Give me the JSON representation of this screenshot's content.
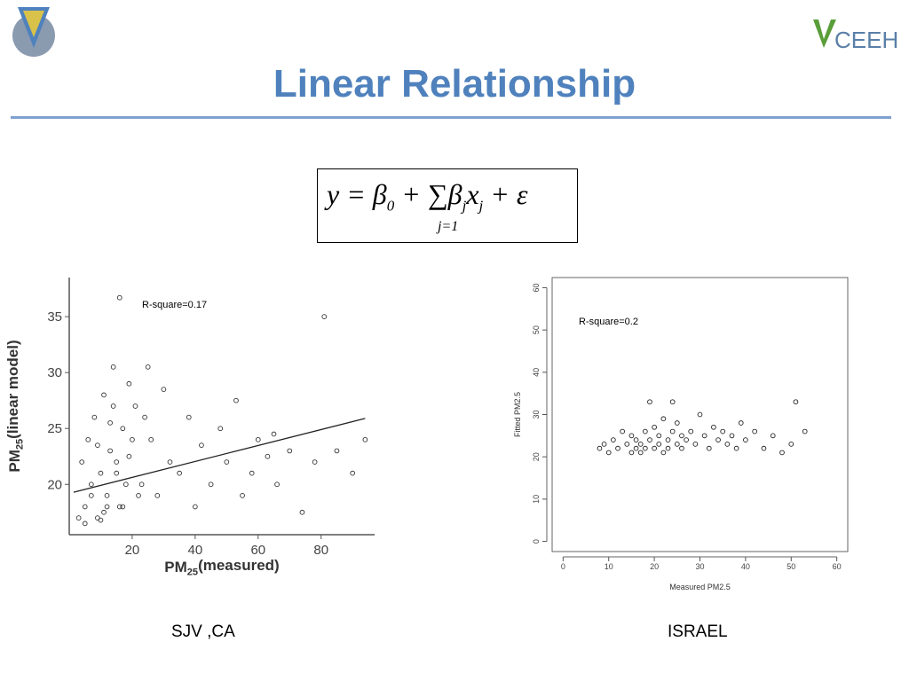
{
  "title": "Linear Relationship",
  "logo_text": "CEEH",
  "formula": {
    "terms": [
      {
        "text": "y = β",
        "sub": "0"
      },
      {
        "text": " + ∑"
      },
      {
        "text": "β",
        "sub": "j"
      },
      {
        "text": "x",
        "sub": "j"
      },
      {
        "text": " + ε"
      }
    ],
    "sum_index": "j=1"
  },
  "captions": [
    "SJV ,CA",
    "ISRAEL"
  ],
  "chart_data": [
    {
      "type": "scatter",
      "annotation": "R-square=0.17",
      "xlabel": [
        "PM",
        "25",
        "(measured)"
      ],
      "ylabel": [
        "PM",
        "25",
        "(linear model)"
      ],
      "box": false,
      "color": "#333333",
      "xlim": [
        0,
        97
      ],
      "ylim": [
        15.5,
        38.5
      ],
      "xticks": [
        20,
        40,
        60,
        80
      ],
      "yticks": [
        20,
        25,
        30,
        35
      ],
      "fit_line": {
        "x": [
          1.4,
          94
        ],
        "y": [
          19.3,
          25.9
        ]
      },
      "x": [
        3,
        4,
        5,
        6,
        7,
        8,
        9,
        10,
        11,
        12,
        13,
        14,
        15,
        16,
        17,
        18,
        19,
        20,
        22,
        24,
        5,
        7,
        9,
        11,
        13,
        15,
        17,
        19,
        21,
        23,
        26,
        28,
        30,
        32,
        35,
        38,
        40,
        42,
        45,
        48,
        50,
        53,
        55,
        58,
        60,
        63,
        66,
        70,
        74,
        78,
        81,
        85,
        90,
        94,
        14,
        16,
        12,
        10,
        25,
        65
      ],
      "y": [
        17,
        22,
        18,
        24,
        20,
        26,
        17,
        21,
        28,
        19,
        23,
        27,
        22,
        18,
        25,
        20,
        29,
        24,
        19,
        26,
        16.5,
        19,
        23.5,
        17.5,
        25.5,
        21,
        18,
        22.5,
        27,
        20,
        24,
        19,
        28.5,
        22,
        21,
        26,
        18,
        23.5,
        20,
        25,
        22,
        27.5,
        19,
        21,
        24,
        22.5,
        20,
        23,
        17.5,
        22,
        35,
        23,
        21,
        24,
        30.5,
        36.7,
        18,
        16.8,
        30.5,
        24.5
      ]
    },
    {
      "type": "scatter",
      "annotation": "R-square=0.2",
      "xlabel": [
        "Measured PM2.5"
      ],
      "ylabel": [
        "Fitted PM2.5"
      ],
      "box": true,
      "color": "#222222",
      "xlim": [
        -2.4,
        62.4
      ],
      "ylim": [
        -2.4,
        62.4
      ],
      "xticks": [
        0,
        10,
        20,
        30,
        40,
        50,
        60
      ],
      "yticks": [
        0,
        10,
        20,
        30,
        40,
        50,
        60
      ],
      "x": [
        8,
        9,
        10,
        11,
        12,
        13,
        14,
        15,
        15,
        16,
        16,
        17,
        17,
        18,
        18,
        19,
        19,
        20,
        20,
        21,
        21,
        22,
        22,
        23,
        23,
        24,
        24,
        25,
        25,
        26,
        26,
        27,
        28,
        29,
        30,
        31,
        32,
        33,
        34,
        35,
        36,
        37,
        38,
        39,
        40,
        42,
        44,
        46,
        48,
        50,
        51,
        53
      ],
      "y": [
        22,
        23,
        21,
        24,
        22,
        26,
        23,
        21,
        25,
        22,
        24,
        23,
        21,
        26,
        22,
        24,
        33,
        22,
        27,
        23,
        25,
        21,
        29,
        24,
        22,
        33,
        26,
        23,
        28,
        22,
        25,
        24,
        26,
        23,
        30,
        25,
        22,
        27,
        24,
        26,
        23,
        25,
        22,
        28,
        24,
        26,
        22,
        25,
        21,
        23,
        33,
        26
      ]
    }
  ]
}
